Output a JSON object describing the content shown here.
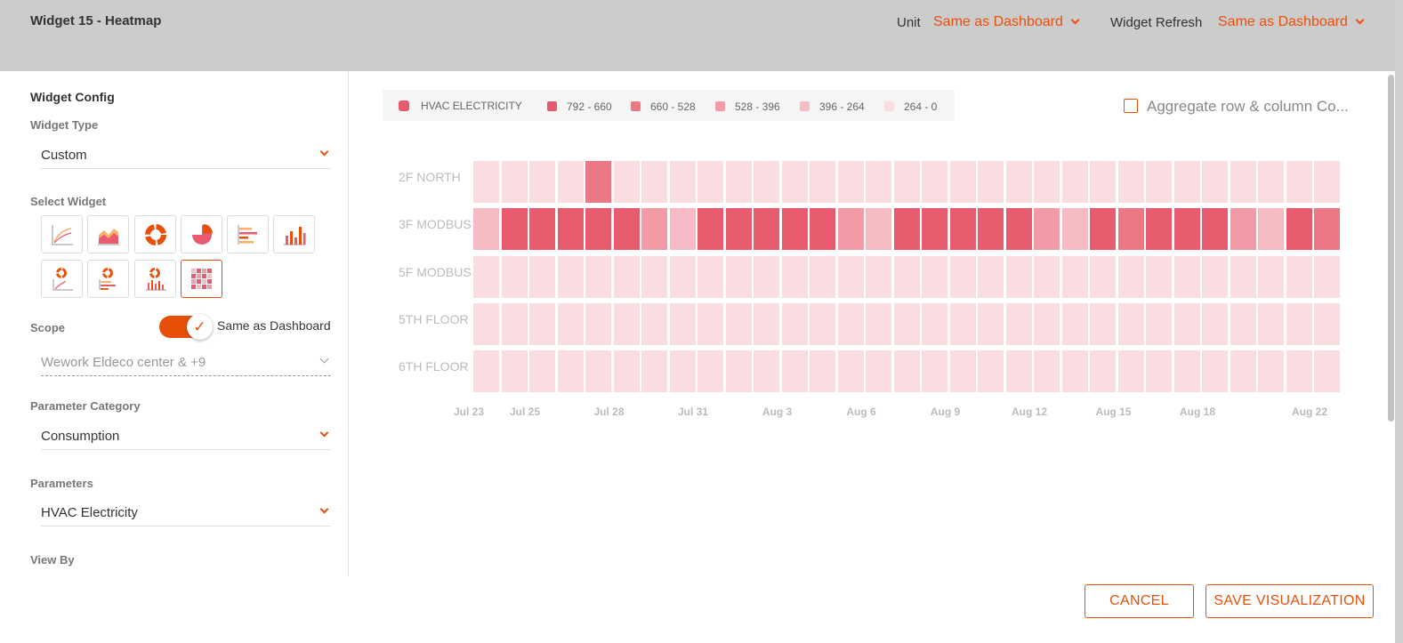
{
  "header": {
    "title": "Widget 15 - Heatmap",
    "unit_label": "Unit",
    "unit_value": "Same as Dashboard",
    "refresh_label": "Widget Refresh",
    "refresh_value": "Same as Dashboard"
  },
  "config": {
    "section_title": "Widget Config",
    "widget_type_label": "Widget Type",
    "widget_type_value": "Custom",
    "select_widget_label": "Select Widget",
    "widget_icons": [
      "line-chart-icon",
      "area-chart-icon",
      "donut-chart-icon",
      "pie-chart-icon",
      "horizontal-bar-chart-icon",
      "column-chart-icon",
      "donut-line-icon",
      "donut-bar-icon",
      "donut-column-icon",
      "heatmap-icon"
    ],
    "selected_widget": "heatmap-icon",
    "scope_label": "Scope",
    "scope_toggle_label": "Same as Dashboard",
    "scope_toggle_on": true,
    "scope_value": "Wework Eldeco center & +9",
    "param_category_label": "Parameter Category",
    "param_category_value": "Consumption",
    "parameters_label": "Parameters",
    "parameters_value": "HVAC Electricity",
    "view_by_label": "View By"
  },
  "legend": {
    "series": "HVAC ELECTRICITY",
    "bins": [
      "792 - 660",
      "660 - 528",
      "528 - 396",
      "396 - 264",
      "264 - 0"
    ]
  },
  "aggregate_label": "Aggregate row & column Co...",
  "aggregate_checked": false,
  "colors": {
    "accent": "#e8500a",
    "bins": [
      "#e85a6d",
      "#ec7785",
      "#f29aa5",
      "#f6bcc3",
      "#fadde1"
    ]
  },
  "chart_data": {
    "type": "heatmap",
    "series": "HVAC ELECTRICITY",
    "rows": [
      "2F NORTH",
      "3F MODBUS",
      "5F MODBUS",
      "5TH FLOOR",
      "6TH FLOOR"
    ],
    "x_tick_labels": [
      "Jul 23",
      "Jul 25",
      "Jul 28",
      "Jul 31",
      "Aug 3",
      "Aug 6",
      "Aug 9",
      "Aug 12",
      "Aug 15",
      "Aug 18",
      "Aug 22"
    ],
    "bin_ranges": [
      [
        660,
        792
      ],
      [
        528,
        660
      ],
      [
        396,
        528
      ],
      [
        264,
        396
      ],
      [
        0,
        264
      ]
    ],
    "columns": 31,
    "bin_index_matrix": [
      [
        4,
        4,
        4,
        4,
        1,
        4,
        4,
        4,
        4,
        4,
        4,
        4,
        4,
        4,
        4,
        4,
        4,
        4,
        4,
        4,
        4,
        4,
        4,
        4,
        4,
        4,
        4,
        4,
        4,
        4,
        4
      ],
      [
        3,
        0,
        0,
        0,
        0,
        0,
        2,
        3,
        0,
        0,
        0,
        0,
        0,
        2,
        3,
        0,
        0,
        0,
        0,
        0,
        2,
        3,
        0,
        1,
        0,
        0,
        0,
        2,
        3,
        0,
        1
      ],
      [
        4,
        4,
        4,
        4,
        4,
        4,
        4,
        4,
        4,
        4,
        4,
        4,
        4,
        4,
        4,
        4,
        4,
        4,
        4,
        4,
        4,
        4,
        4,
        4,
        4,
        4,
        4,
        4,
        4,
        4,
        4
      ],
      [
        4,
        4,
        4,
        4,
        4,
        4,
        4,
        4,
        4,
        4,
        4,
        4,
        4,
        4,
        4,
        4,
        4,
        4,
        4,
        4,
        4,
        4,
        4,
        4,
        4,
        4,
        4,
        4,
        4,
        4,
        4
      ],
      [
        4,
        4,
        4,
        4,
        4,
        4,
        4,
        4,
        4,
        4,
        4,
        4,
        4,
        4,
        4,
        4,
        4,
        4,
        4,
        4,
        4,
        4,
        4,
        4,
        4,
        4,
        4,
        4,
        4,
        4,
        4
      ]
    ]
  },
  "actions": {
    "cancel": "CANCEL",
    "save": "SAVE VISUALIZATION"
  }
}
